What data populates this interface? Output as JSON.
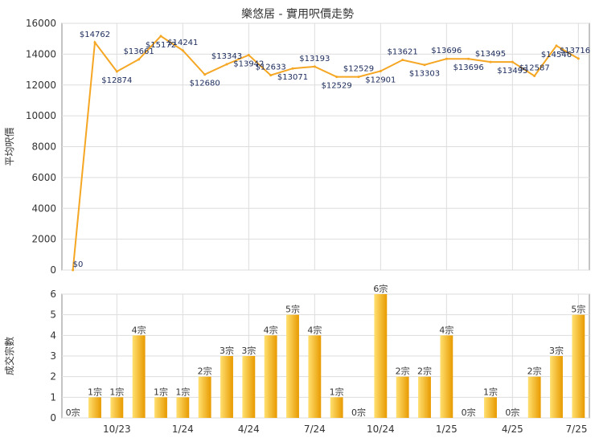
{
  "chart_title": "樂悠居 - 實用呎價走勢",
  "colors": {
    "line": "#f5a623",
    "bar_light": "#ffe070",
    "bar_dark": "#e89a00",
    "grid": "#dddddd",
    "axis": "#888888"
  },
  "chart_data": [
    {
      "type": "line",
      "title": "樂悠居 - 實用呎價走勢",
      "ylabel": "平均呎價",
      "ylim": [
        0,
        16000
      ],
      "yticks": [
        0,
        2000,
        4000,
        6000,
        8000,
        10000,
        12000,
        14000,
        16000
      ],
      "x_tick_labels": [
        "10/23",
        "1/24",
        "4/24",
        "7/24",
        "10/24",
        "1/25",
        "4/25",
        "7/25"
      ],
      "values": [
        0,
        14762,
        12874,
        13661,
        15172,
        14241,
        12680,
        13343,
        13942,
        12633,
        13071,
        13193,
        12529,
        12529,
        12901,
        13621,
        13303,
        13696,
        13696,
        13495,
        13495,
        12587,
        14546,
        13716
      ],
      "labels": [
        "$0",
        "$14762",
        "$12874",
        "$13661",
        "$15172",
        "$14241",
        "$12680",
        "$13343",
        "$13942",
        "$12633",
        "$13071",
        "$13193",
        "$12529",
        "$12529",
        "$12901",
        "$13621",
        "$13303",
        "$13696",
        "$13696",
        "$13495",
        "$13495",
        "$12587",
        "$14546",
        "$13716"
      ],
      "grid": true
    },
    {
      "type": "bar",
      "ylabel": "成交宗數",
      "ylim": [
        0,
        6
      ],
      "yticks": [
        0,
        1,
        2,
        3,
        4,
        5,
        6
      ],
      "x_tick_labels": [
        "10/23",
        "1/24",
        "4/24",
        "7/24",
        "10/24",
        "1/25",
        "4/25",
        "7/25"
      ],
      "values": [
        0,
        1,
        1,
        4,
        1,
        1,
        2,
        3,
        3,
        4,
        5,
        4,
        1,
        0,
        6,
        2,
        2,
        4,
        0,
        1,
        0,
        2,
        3,
        5
      ],
      "labels": [
        "0宗",
        "1宗",
        "1宗",
        "4宗",
        "1宗",
        "1宗",
        "2宗",
        "3宗",
        "3宗",
        "4宗",
        "5宗",
        "4宗",
        "1宗",
        "0宗",
        "6宗",
        "2宗",
        "2宗",
        "4宗",
        "0宗",
        "1宗",
        "0宗",
        "2宗",
        "3宗",
        "5宗"
      ],
      "grid": true
    }
  ]
}
